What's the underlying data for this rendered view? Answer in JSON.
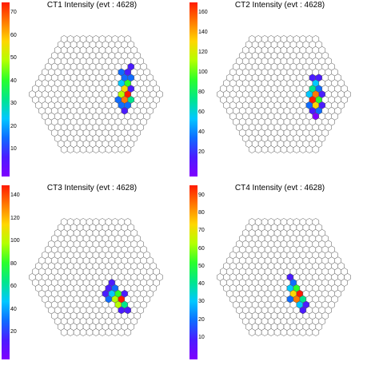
{
  "palette": [
    "#8000ff",
    "#4b1cff",
    "#0f6cff",
    "#00c8ff",
    "#00e68c",
    "#2bff2b",
    "#b4ff00",
    "#ffd600",
    "#ff7a00",
    "#ff1a00"
  ],
  "panels": [
    {
      "title": "CT1 Intensity (evt : 4628)",
      "ticks": [
        "70",
        "60",
        "50",
        "40",
        "30",
        "20",
        "10"
      ],
      "vmax": 75,
      "hot_pixels": [
        {
          "q": 7,
          "r": -4,
          "v": 14
        },
        {
          "q": 8,
          "r": -5,
          "v": 12
        },
        {
          "q": 6,
          "r": -4,
          "v": 18
        },
        {
          "q": 7,
          "r": -3,
          "v": 16
        },
        {
          "q": 6,
          "r": -3,
          "v": 22
        },
        {
          "q": 5,
          "r": -2,
          "v": 25
        },
        {
          "q": 6,
          "r": -2,
          "v": 40
        },
        {
          "q": 5,
          "r": -1,
          "v": 55
        },
        {
          "q": 4,
          "r": 0,
          "v": 45
        },
        {
          "q": 5,
          "r": 0,
          "v": 70
        },
        {
          "q": 4,
          "r": 1,
          "v": 60
        },
        {
          "q": 3,
          "r": 1,
          "v": 20
        },
        {
          "q": 4,
          "r": 2,
          "v": 18
        },
        {
          "q": 3,
          "r": 2,
          "v": 15
        },
        {
          "q": 5,
          "r": 1,
          "v": 30
        },
        {
          "q": 6,
          "r": -1,
          "v": 12
        },
        {
          "q": 3,
          "r": 3,
          "v": 10
        }
      ]
    },
    {
      "title": "CT2 Intensity (evt : 4628)",
      "ticks": [
        "160",
        "140",
        "120",
        "100",
        "80",
        "60",
        "40",
        "20"
      ],
      "vmax": 170,
      "hot_pixels": [
        {
          "q": 6,
          "r": -3,
          "v": 25
        },
        {
          "q": 7,
          "r": -3,
          "v": 20
        },
        {
          "q": 6,
          "r": -2,
          "v": 60
        },
        {
          "q": 5,
          "r": -1,
          "v": 70
        },
        {
          "q": 6,
          "r": -1,
          "v": 45
        },
        {
          "q": 5,
          "r": 0,
          "v": 140
        },
        {
          "q": 4,
          "r": 1,
          "v": 160
        },
        {
          "q": 5,
          "r": 1,
          "v": 90
        },
        {
          "q": 4,
          "r": 2,
          "v": 120
        },
        {
          "q": 3,
          "r": 2,
          "v": 40
        },
        {
          "q": 4,
          "r": 3,
          "v": 35
        },
        {
          "q": 3,
          "r": 3,
          "v": 20
        },
        {
          "q": 5,
          "r": 2,
          "v": 30
        },
        {
          "q": 4,
          "r": 0,
          "v": 55
        },
        {
          "q": 6,
          "r": 0,
          "v": 25
        },
        {
          "q": 3,
          "r": 4,
          "v": 15
        }
      ]
    },
    {
      "title": "CT3 Intensity (evt : 4628)",
      "ticks": [
        "140",
        "120",
        "100",
        "80",
        "60",
        "40",
        "20"
      ],
      "vmax": 150,
      "hot_pixels": [
        {
          "q": 2,
          "r": 1,
          "v": 20
        },
        {
          "q": 1,
          "r": 2,
          "v": 25
        },
        {
          "q": 2,
          "r": 2,
          "v": 35
        },
        {
          "q": 1,
          "r": 3,
          "v": 55
        },
        {
          "q": 2,
          "r": 3,
          "v": 80
        },
        {
          "q": 1,
          "r": 4,
          "v": 100
        },
        {
          "q": 2,
          "r": 4,
          "v": 140
        },
        {
          "q": 1,
          "r": 5,
          "v": 90
        },
        {
          "q": 2,
          "r": 5,
          "v": 60
        },
        {
          "q": 0,
          "r": 4,
          "v": 30
        },
        {
          "q": 0,
          "r": 3,
          "v": 22
        },
        {
          "q": 3,
          "r": 3,
          "v": 18
        },
        {
          "q": 1,
          "r": 6,
          "v": 25
        },
        {
          "q": 2,
          "r": 6,
          "v": 18
        }
      ]
    },
    {
      "title": "CT4 Intensity (evt : 4628)",
      "ticks": [
        "90",
        "80",
        "70",
        "60",
        "50",
        "40",
        "30",
        "20",
        "10"
      ],
      "vmax": 100,
      "hot_pixels": [
        {
          "q": 1,
          "r": 0,
          "v": 15
        },
        {
          "q": 1,
          "r": 1,
          "v": 25
        },
        {
          "q": 0,
          "r": 2,
          "v": 35
        },
        {
          "q": 1,
          "r": 2,
          "v": 50
        },
        {
          "q": 0,
          "r": 3,
          "v": 70
        },
        {
          "q": 1,
          "r": 3,
          "v": 90
        },
        {
          "q": 0,
          "r": 4,
          "v": 80
        },
        {
          "q": 1,
          "r": 4,
          "v": 45
        },
        {
          "q": 0,
          "r": 5,
          "v": 30
        },
        {
          "q": -1,
          "r": 4,
          "v": 20
        },
        {
          "q": 1,
          "r": 5,
          "v": 18
        },
        {
          "q": 0,
          "r": 6,
          "v": 12
        }
      ]
    }
  ]
}
